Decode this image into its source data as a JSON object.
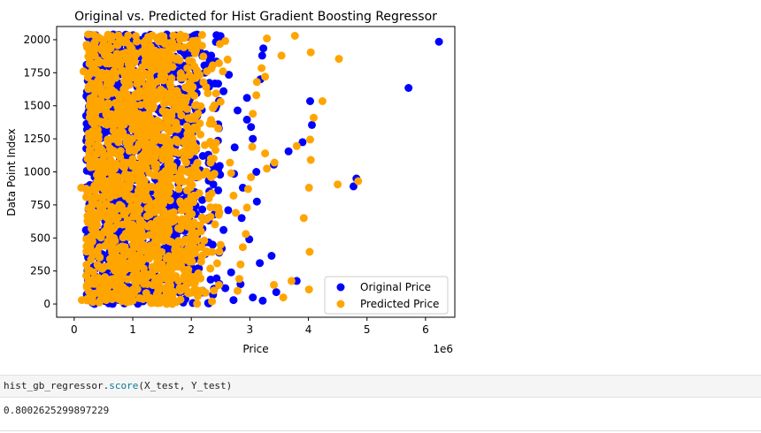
{
  "chart_data": {
    "type": "scatter",
    "title": "Original vs. Predicted for Hist Gradient Boosting Regressor",
    "xlabel": "Price",
    "ylabel": "Data Point Index",
    "x_offset_label": "1e6",
    "xlim": [
      -0.3,
      6.5
    ],
    "ylim": [
      -100,
      2100
    ],
    "x_ticks": [
      0,
      1,
      2,
      3,
      4,
      5,
      6
    ],
    "x_tick_labels": [
      "0",
      "1",
      "2",
      "3",
      "4",
      "5",
      "6"
    ],
    "y_ticks": [
      0,
      250,
      500,
      750,
      1000,
      1250,
      1500,
      1750,
      2000
    ],
    "y_tick_labels": [
      "0",
      "250",
      "500",
      "750",
      "1000",
      "1250",
      "1500",
      "1750",
      "2000"
    ],
    "grid": false,
    "legend_position": "lower-right",
    "series": [
      {
        "name": "Original Price",
        "color": "#0000ff",
        "points": [
          [
            6.23,
            1985
          ],
          [
            5.71,
            1635
          ],
          [
            4.77,
            890
          ],
          [
            4.82,
            950
          ],
          [
            4.03,
            1535
          ],
          [
            4.06,
            1355
          ],
          [
            3.9,
            1225
          ],
          [
            3.8,
            175
          ],
          [
            3.66,
            1155
          ],
          [
            3.41,
            1055
          ],
          [
            3.23,
            1935
          ],
          [
            3.21,
            1880
          ],
          [
            3.18,
            1700
          ],
          [
            3.05,
            1250
          ],
          [
            3.02,
            1340
          ],
          [
            2.95,
            1395
          ],
          [
            2.88,
            880
          ],
          [
            2.79,
            1465
          ],
          [
            2.73,
            985
          ],
          [
            2.64,
            1735
          ],
          [
            2.58,
            120
          ],
          [
            2.72,
            30
          ],
          [
            3.22,
            25
          ],
          [
            3.37,
            365
          ],
          [
            3.45,
            90
          ],
          [
            3.17,
            310
          ],
          [
            2.99,
            490
          ],
          [
            2.86,
            650
          ],
          [
            2.63,
            710
          ],
          [
            2.55,
            560
          ],
          [
            2.43,
            2035
          ],
          [
            2.34,
            1880
          ],
          [
            2.29,
            1130
          ],
          [
            2.46,
            860
          ],
          [
            3.12,
            775
          ],
          [
            3.11,
            1000
          ],
          [
            2.95,
            1560
          ],
          [
            2.74,
            1185
          ],
          [
            2.55,
            1610
          ],
          [
            2.47,
            1330
          ],
          [
            2.38,
            980
          ],
          [
            2.52,
            420
          ],
          [
            2.68,
            240
          ],
          [
            2.84,
            150
          ],
          [
            3.05,
            50
          ],
          [
            2.19,
            570
          ],
          [
            2.13,
            270
          ],
          [
            2.15,
            1465
          ],
          [
            2.23,
            1750
          ],
          [
            2.07,
            1960
          ],
          [
            0.95,
            380
          ],
          [
            1.6,
            905
          ]
        ]
      },
      {
        "name": "Predicted Price",
        "color": "#ffa500",
        "points": [
          [
            3.77,
            2030
          ],
          [
            3.29,
            2010
          ],
          [
            4.04,
            1905
          ],
          [
            4.52,
            1855
          ],
          [
            3.54,
            1880
          ],
          [
            4.24,
            1535
          ],
          [
            4.09,
            1410
          ],
          [
            4.03,
            1245
          ],
          [
            4.04,
            1090
          ],
          [
            3.8,
            1195
          ],
          [
            4.85,
            930
          ],
          [
            4.5,
            905
          ],
          [
            4.01,
            880
          ],
          [
            3.92,
            650
          ],
          [
            4.02,
            395
          ],
          [
            4.01,
            110
          ],
          [
            3.71,
            175
          ],
          [
            3.57,
            50
          ],
          [
            3.41,
            145
          ],
          [
            3.42,
            1070
          ],
          [
            3.29,
            1025
          ],
          [
            3.26,
            1140
          ],
          [
            3.26,
            1720
          ],
          [
            3.2,
            1785
          ],
          [
            3.12,
            1680
          ],
          [
            3.11,
            1580
          ],
          [
            3.05,
            1440
          ],
          [
            3.04,
            1190
          ],
          [
            3.02,
            960
          ],
          [
            2.97,
            870
          ],
          [
            2.95,
            730
          ],
          [
            2.93,
            530
          ],
          [
            2.88,
            430
          ],
          [
            2.84,
            300
          ],
          [
            2.82,
            190
          ],
          [
            2.79,
            100
          ],
          [
            2.76,
            690
          ],
          [
            2.72,
            820
          ],
          [
            2.68,
            990
          ],
          [
            2.66,
            1070
          ],
          [
            2.62,
            1850
          ],
          [
            2.58,
            1990
          ],
          [
            2.54,
            1760
          ],
          [
            2.5,
            1530
          ],
          [
            2.46,
            1330
          ],
          [
            2.42,
            1220
          ],
          [
            2.38,
            1100
          ],
          [
            2.34,
            960
          ],
          [
            2.3,
            800
          ],
          [
            2.26,
            640
          ],
          [
            2.22,
            480
          ],
          [
            2.18,
            360
          ],
          [
            2.14,
            200
          ],
          [
            2.11,
            60
          ],
          [
            2.08,
            1920
          ],
          [
            0.12,
            880
          ],
          [
            0.16,
            1760
          ],
          [
            0.13,
            30
          ]
        ]
      }
    ]
  },
  "code_cell": {
    "object": "hist_gb_regressor.",
    "method": "score",
    "args": "(X_test, Y_test)"
  },
  "output_cell": {
    "value": "0.8002625299897229"
  }
}
